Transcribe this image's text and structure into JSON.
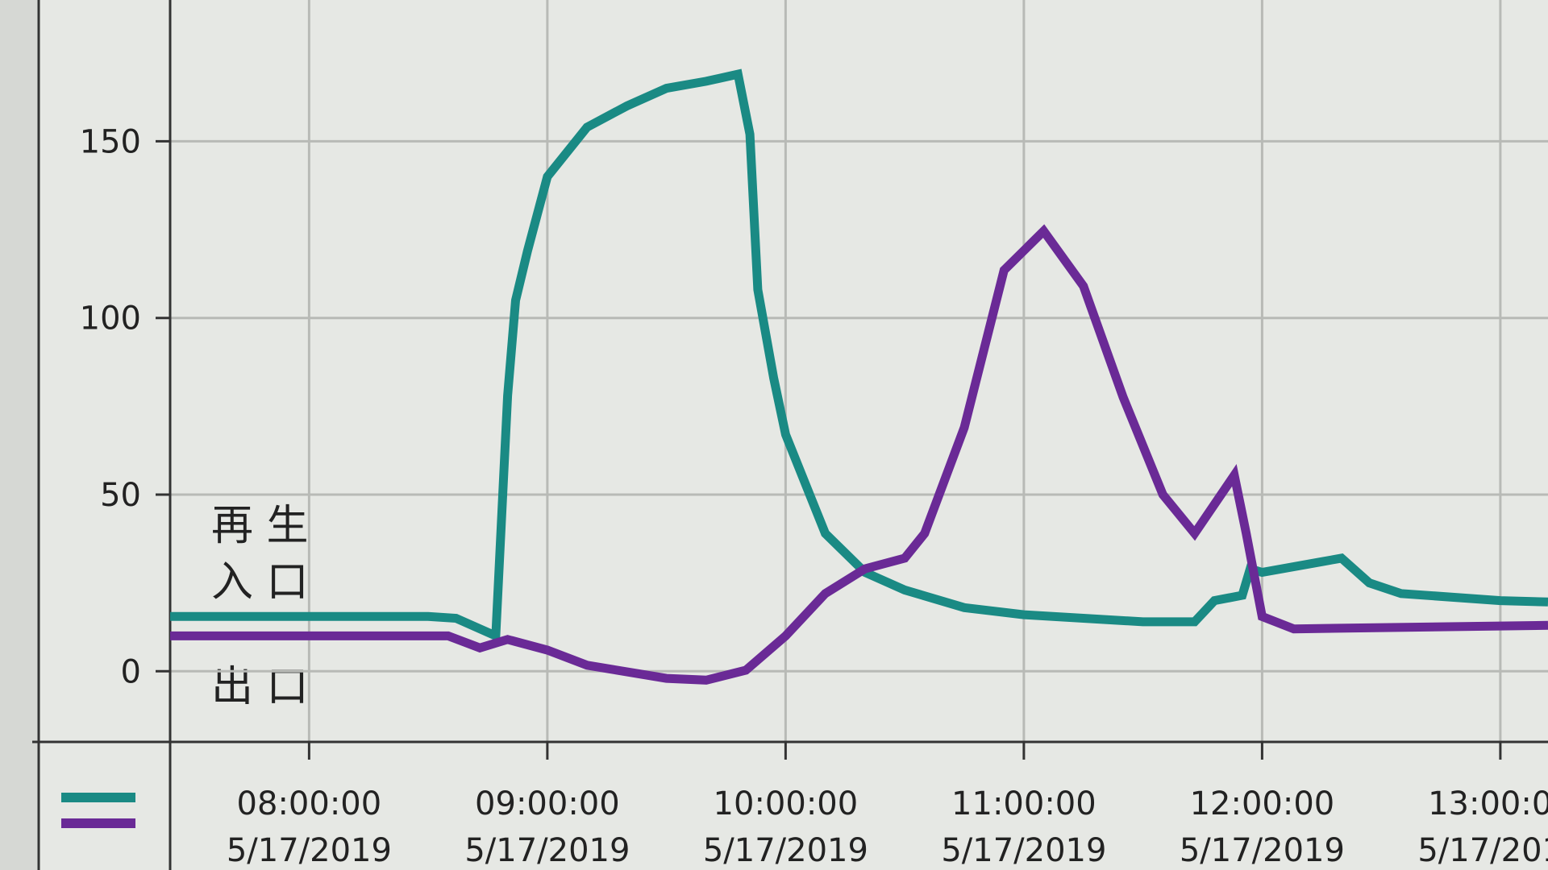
{
  "chart_data": {
    "type": "line",
    "xlim": [
      "2019-05-17T07:25:00",
      "2019-05-17T13:12:00"
    ],
    "xticks": [
      {
        "value": "2019-05-17T08:00:00",
        "label": "08:00:00\n5/17/2019"
      },
      {
        "value": "2019-05-17T09:00:00",
        "label": "09:00:00\n5/17/2019"
      },
      {
        "value": "2019-05-17T10:00:00",
        "label": "10:00:00\n5/17/2019"
      },
      {
        "value": "2019-05-17T11:00:00",
        "label": "11:00:00\n5/17/2019"
      },
      {
        "value": "2019-05-17T12:00:00",
        "label": "12:00:00\n5/17/2019"
      },
      {
        "value": "2019-05-17T13:00:00",
        "label": "13:00:00\n5/17/2019"
      }
    ],
    "ylim": [
      -20,
      190
    ],
    "yticks": [
      0,
      50,
      100,
      150
    ],
    "grid": true,
    "annotations": [
      "再 生",
      "入 口",
      "出 口"
    ],
    "series": [
      {
        "color": "#1a8a84",
        "x": [
          "2019-05-17T07:25:00",
          "2019-05-17T08:30:00",
          "2019-05-17T08:37:00",
          "2019-05-17T08:47:00",
          "2019-05-17T08:50:00",
          "2019-05-17T08:52:00",
          "2019-05-17T08:55:00",
          "2019-05-17T09:00:00",
          "2019-05-17T09:10:00",
          "2019-05-17T09:20:00",
          "2019-05-17T09:30:00",
          "2019-05-17T09:40:00",
          "2019-05-17T09:48:00",
          "2019-05-17T09:51:00",
          "2019-05-17T09:53:00",
          "2019-05-17T09:57:00",
          "2019-05-17T10:00:00",
          "2019-05-17T10:10:00",
          "2019-05-17T10:20:00",
          "2019-05-17T10:30:00",
          "2019-05-17T10:45:00",
          "2019-05-17T11:00:00",
          "2019-05-17T11:30:00",
          "2019-05-17T11:43:00",
          "2019-05-17T11:48:00",
          "2019-05-17T11:55:00",
          "2019-05-17T11:57:00",
          "2019-05-17T12:00:00",
          "2019-05-17T12:15:00",
          "2019-05-17T12:20:00",
          "2019-05-17T12:27:00",
          "2019-05-17T12:35:00",
          "2019-05-17T13:00:00",
          "2019-05-17T13:12:00"
        ],
        "values": [
          15.5,
          15.5,
          15,
          10,
          78,
          105,
          119,
          140,
          154,
          160,
          165,
          167,
          169,
          152,
          108,
          83,
          67,
          39,
          28,
          23,
          18,
          16,
          14,
          14,
          20,
          21.5,
          29,
          28,
          31,
          32,
          25,
          22,
          20,
          19.6
        ]
      },
      {
        "color": "#6a2a96",
        "x": [
          "2019-05-17T07:25:00",
          "2019-05-17T08:35:00",
          "2019-05-17T08:43:00",
          "2019-05-17T08:50:00",
          "2019-05-17T09:00:00",
          "2019-05-17T09:10:00",
          "2019-05-17T09:30:00",
          "2019-05-17T09:40:00",
          "2019-05-17T09:50:00",
          "2019-05-17T10:00:00",
          "2019-05-17T10:10:00",
          "2019-05-17T10:20:00",
          "2019-05-17T10:30:00",
          "2019-05-17T10:35:00",
          "2019-05-17T10:45:00",
          "2019-05-17T10:55:00",
          "2019-05-17T11:05:00",
          "2019-05-17T11:15:00",
          "2019-05-17T11:25:00",
          "2019-05-17T11:35:00",
          "2019-05-17T11:43:00",
          "2019-05-17T11:53:00",
          "2019-05-17T11:56:00",
          "2019-05-17T12:00:00",
          "2019-05-17T12:08:00",
          "2019-05-17T13:12:00"
        ],
        "values": [
          10,
          10,
          6.6,
          9,
          6,
          1.7,
          -2,
          -2.5,
          0.3,
          10,
          22,
          29,
          32,
          39,
          69,
          113.5,
          124.6,
          109,
          77.6,
          50,
          39,
          55.5,
          39,
          15.5,
          12,
          13
        ]
      }
    ]
  }
}
